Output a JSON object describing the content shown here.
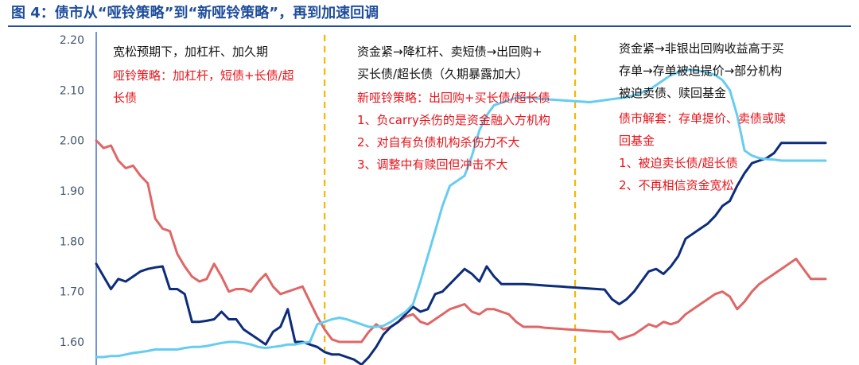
{
  "title": "图 4：债市从“哑铃策略”到“新哑铃策略”，再到加速回调",
  "colors": {
    "title": "#1f4e9c",
    "red_series": "#e06666",
    "navy_series": "#0d2c7a",
    "cyan_series": "#66ccf0",
    "divider": "#f5b800",
    "annotation_black": "#111111",
    "annotation_red": "#e8141b"
  },
  "chart_data": {
    "type": "line",
    "ylim": [
      1.55,
      2.2
    ],
    "y_ticks": [
      "2.20",
      "2.10",
      "2.00",
      "1.90",
      "1.80",
      "1.70",
      "1.60"
    ],
    "x": [
      0,
      1,
      2,
      3,
      4,
      5,
      6,
      7,
      8,
      9,
      10,
      11,
      12,
      13,
      14,
      15,
      16,
      17,
      18,
      19,
      20,
      21,
      22,
      23,
      24,
      25,
      26,
      27,
      28,
      29,
      30,
      31,
      32,
      33,
      34,
      35,
      36,
      37,
      38,
      39,
      40,
      41,
      42,
      43,
      44,
      45,
      46,
      47,
      48,
      49,
      50,
      51,
      52,
      53,
      54,
      55,
      56,
      57,
      58,
      59,
      60,
      61,
      62,
      63,
      64,
      65,
      66,
      67,
      68,
      69,
      70,
      71,
      72,
      73,
      74,
      75,
      76,
      77,
      78,
      79,
      80,
      81,
      82,
      83,
      84,
      85,
      86,
      87,
      88,
      89,
      90,
      91,
      92,
      93,
      94,
      95,
      96,
      97,
      98,
      99
    ],
    "series": [
      {
        "color": "#e06666",
        "values": [
          2.0,
          1.985,
          1.99,
          1.96,
          1.945,
          1.95,
          1.93,
          1.915,
          1.845,
          1.825,
          1.82,
          1.775,
          1.75,
          1.73,
          1.72,
          1.725,
          1.755,
          1.73,
          1.7,
          1.705,
          1.705,
          1.7,
          1.72,
          1.735,
          1.71,
          1.695,
          1.7,
          1.705,
          1.71,
          1.68,
          1.65,
          1.625,
          1.605,
          1.6,
          1.6,
          1.6,
          1.6,
          1.62,
          1.635,
          1.625,
          1.63,
          1.64,
          1.65,
          1.655,
          1.64,
          1.635,
          1.645,
          1.655,
          1.665,
          1.67,
          1.675,
          1.66,
          1.655,
          1.665,
          1.665,
          1.66,
          1.655,
          1.64,
          1.63,
          1.63,
          1.63,
          1.628,
          1.627,
          1.626,
          1.625,
          1.624,
          1.623,
          1.622,
          1.621,
          1.62,
          1.62,
          1.605,
          1.61,
          1.615,
          1.625,
          1.635,
          1.63,
          1.64,
          1.635,
          1.64,
          1.655,
          1.665,
          1.675,
          1.685,
          1.695,
          1.7,
          1.69,
          1.665,
          1.68,
          1.7,
          1.715,
          1.725,
          1.735,
          1.745,
          1.755,
          1.765,
          1.745,
          1.725,
          1.725,
          1.725
        ]
      },
      {
        "color": "#0d2c7a",
        "values": [
          1.755,
          1.73,
          1.705,
          1.725,
          1.72,
          1.73,
          1.74,
          1.745,
          1.748,
          1.75,
          1.705,
          1.705,
          1.695,
          1.64,
          1.64,
          1.642,
          1.645,
          1.66,
          1.645,
          1.645,
          1.625,
          1.615,
          1.605,
          1.595,
          1.62,
          1.63,
          1.665,
          1.6,
          1.6,
          1.595,
          1.59,
          1.58,
          1.575,
          1.575,
          1.57,
          1.565,
          1.555,
          1.57,
          1.59,
          1.615,
          1.63,
          1.64,
          1.655,
          1.67,
          1.66,
          1.665,
          1.695,
          1.7,
          1.715,
          1.73,
          1.745,
          1.735,
          1.72,
          1.75,
          1.73,
          1.715,
          1.715,
          1.715,
          1.715,
          1.714,
          1.713,
          1.712,
          1.711,
          1.71,
          1.709,
          1.708,
          1.707,
          1.706,
          1.705,
          1.704,
          1.685,
          1.675,
          1.685,
          1.7,
          1.72,
          1.74,
          1.745,
          1.735,
          1.75,
          1.77,
          1.805,
          1.815,
          1.825,
          1.835,
          1.85,
          1.87,
          1.88,
          1.91,
          1.935,
          1.955,
          1.96,
          1.965,
          1.975,
          1.995,
          1.995,
          1.995,
          1.995,
          1.995,
          1.995,
          1.995
        ]
      },
      {
        "color": "#66ccf0",
        "values": [
          1.57,
          1.57,
          1.572,
          1.572,
          1.575,
          1.578,
          1.58,
          1.582,
          1.585,
          1.585,
          1.585,
          1.585,
          1.588,
          1.59,
          1.59,
          1.592,
          1.595,
          1.598,
          1.6,
          1.6,
          1.598,
          1.595,
          1.59,
          1.588,
          1.59,
          1.592,
          1.595,
          1.595,
          1.598,
          1.6,
          1.635,
          1.64,
          1.645,
          1.648,
          1.645,
          1.64,
          1.635,
          1.63,
          1.63,
          1.632,
          1.64,
          1.65,
          1.66,
          1.675,
          1.72,
          1.77,
          1.82,
          1.87,
          1.91,
          1.92,
          1.93,
          1.97,
          2.02,
          2.05,
          2.07,
          2.075,
          2.08,
          2.085,
          2.085,
          2.085,
          2.083,
          2.082,
          2.081,
          2.08,
          2.079,
          2.078,
          2.077,
          2.076,
          2.078,
          2.08,
          2.082,
          2.084,
          2.086,
          2.09,
          2.095,
          2.1,
          2.11,
          2.12,
          2.13,
          2.135,
          2.14,
          2.14,
          2.138,
          2.135,
          2.13,
          2.12,
          2.1,
          2.05,
          1.98,
          1.97,
          1.965,
          1.963,
          1.962,
          1.96,
          1.96,
          1.96,
          1.96,
          1.96,
          1.96,
          1.96
        ]
      }
    ],
    "dividers_at_x": [
      31,
      65
    ],
    "annotations": [
      {
        "color": "black",
        "lines": [
          "宽松预期下，加杠杆、加久期"
        ]
      },
      {
        "color": "red",
        "lines": [
          "哑铃策略：加杠杆，短债+长债/超",
          "长债"
        ]
      },
      {
        "color": "black",
        "lines": [
          "资金紧→降杠杆、卖短债→出回购+",
          "买长债/超长债（久期暴露加大）"
        ]
      },
      {
        "color": "red",
        "lines": [
          "新哑铃策略：出回购+买长债/超长债",
          "1、负carry杀伤的是资金融入方机构",
          "2、对自有负债机构杀伤力不大",
          "3、调整中有赎回但冲击不大"
        ]
      },
      {
        "color": "black",
        "lines": [
          "资金紧→非银出回购收益高于买",
          "存单→存单被迫提价→部分机构",
          "被迫卖债、赎回基金"
        ]
      },
      {
        "color": "red",
        "lines": [
          "债市解套：存单提价、卖债或赎",
          "回基金",
          "1、被迫卖长债/超长债",
          "2、不再相信资金宽松"
        ]
      }
    ]
  }
}
